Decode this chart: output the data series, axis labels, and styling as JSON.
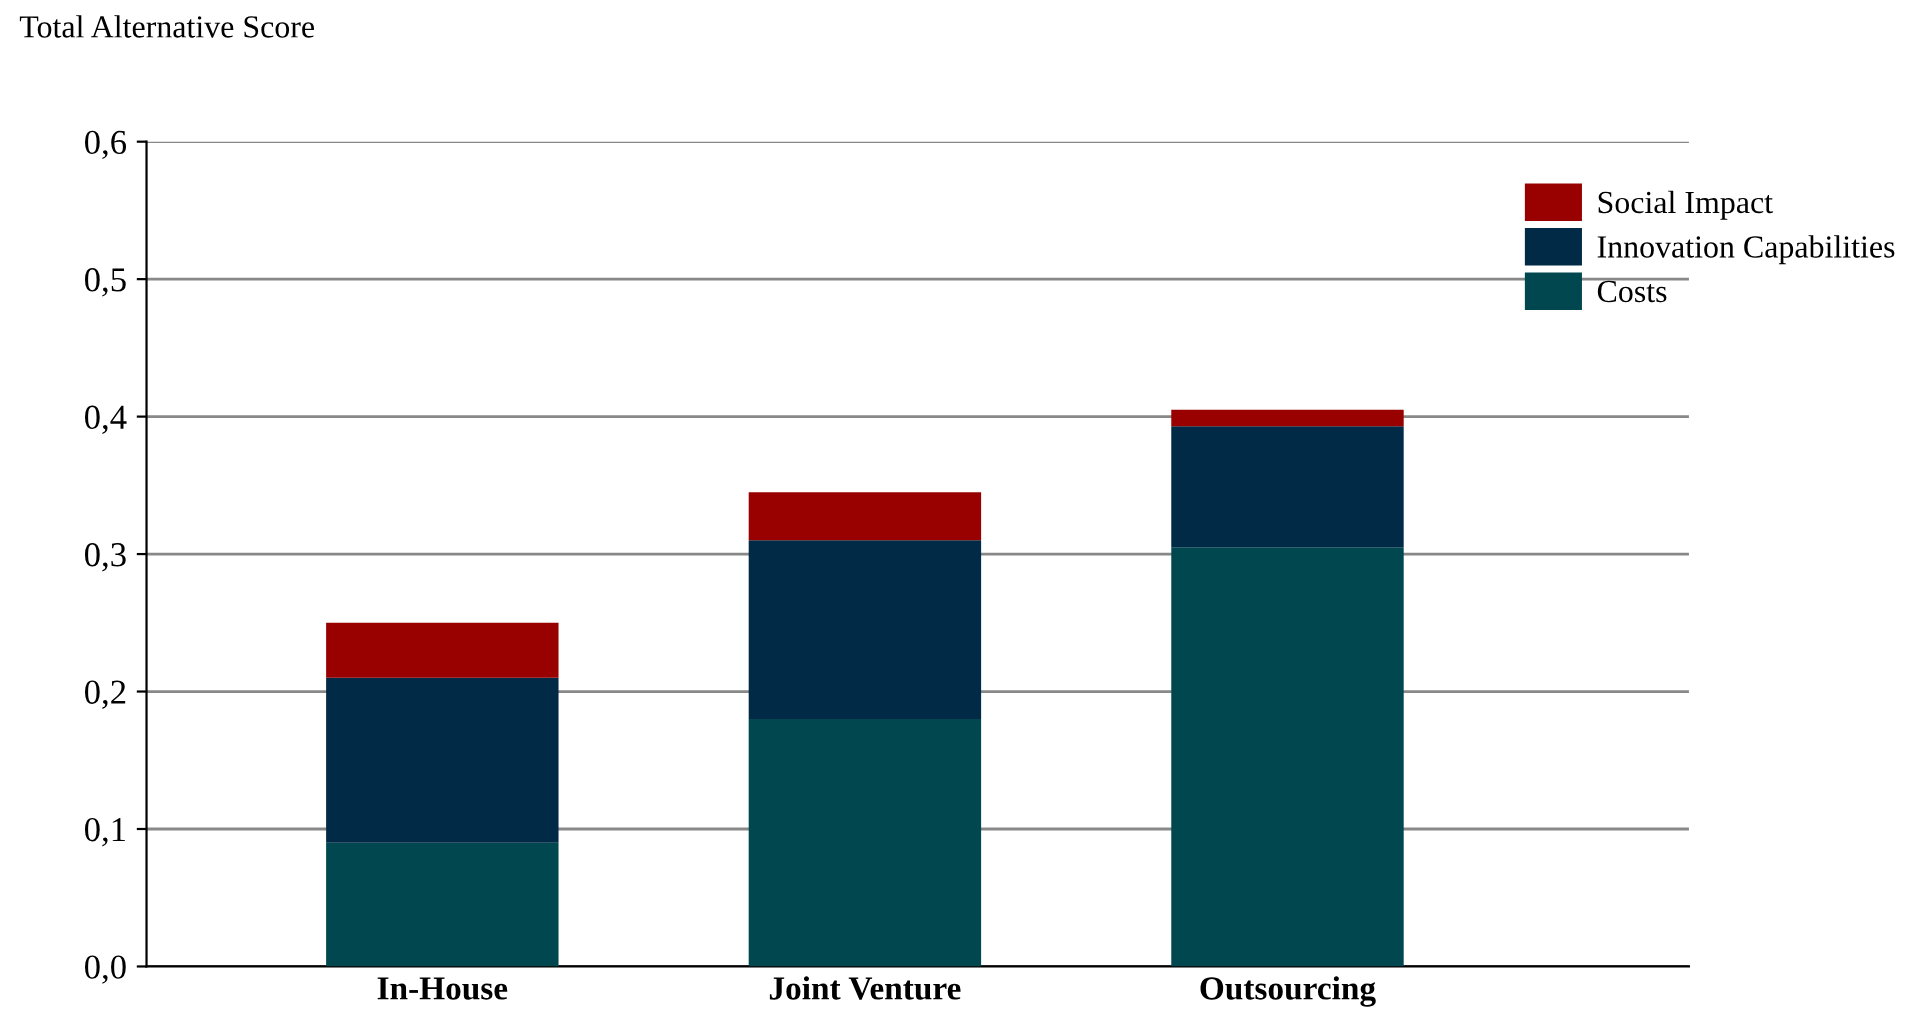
{
  "chart_data": {
    "type": "bar",
    "stacked": true,
    "ylabel": "Total Alternative Score",
    "categories": [
      "In-House",
      "Joint Venture",
      "Outsourcing"
    ],
    "series": [
      {
        "name": "Costs",
        "color": "#004750",
        "values": [
          0.09,
          0.18,
          0.305
        ]
      },
      {
        "name": "Innovation Capabilities",
        "color": "#002a45",
        "values": [
          0.12,
          0.13,
          0.088
        ]
      },
      {
        "name": "Social Impact",
        "color": "#990000",
        "values": [
          0.04,
          0.035,
          0.012
        ]
      }
    ],
    "ylim": [
      0,
      0.6
    ],
    "yticks": [
      {
        "value": 0,
        "label": "0,0"
      },
      {
        "value": 0.1,
        "label": "0,1"
      },
      {
        "value": 0.2,
        "label": "0,2"
      },
      {
        "value": 0.3,
        "label": "0,3"
      },
      {
        "value": 0.4,
        "label": "0,4"
      },
      {
        "value": 0.5,
        "label": "0,5"
      },
      {
        "value": 0.6,
        "label": "0,6"
      }
    ],
    "grid": "y",
    "legend": "top right"
  }
}
